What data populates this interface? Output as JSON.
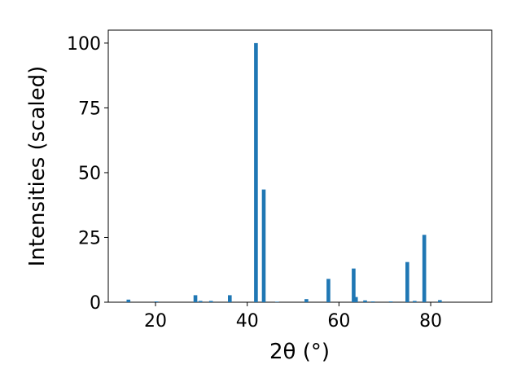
{
  "chart_data": {
    "type": "bar",
    "x_label": "2θ (°)",
    "y_label": "Intensities (scaled)",
    "x": [
      14.1,
      20.2,
      28.7,
      29.8,
      32.1,
      36.2,
      41.9,
      43.6,
      46.5,
      52.9,
      57.7,
      63.2,
      63.7,
      65.7,
      67.4,
      71.3,
      74.9,
      76.5,
      78.6,
      82.0
    ],
    "values": [
      1,
      0.3,
      2.7,
      0.5,
      0.5,
      2.7,
      100,
      43.5,
      0.2,
      1.2,
      9,
      13,
      2,
      0.7,
      0.3,
      0.3,
      15.5,
      0.5,
      26,
      0.8
    ],
    "color": "#1f77b4",
    "xlim": [
      9.7,
      93.3
    ],
    "xticks": [
      20,
      40,
      60,
      80
    ],
    "ylim": [
      0,
      105
    ],
    "yticks": [
      0,
      25,
      50,
      75,
      100
    ]
  }
}
